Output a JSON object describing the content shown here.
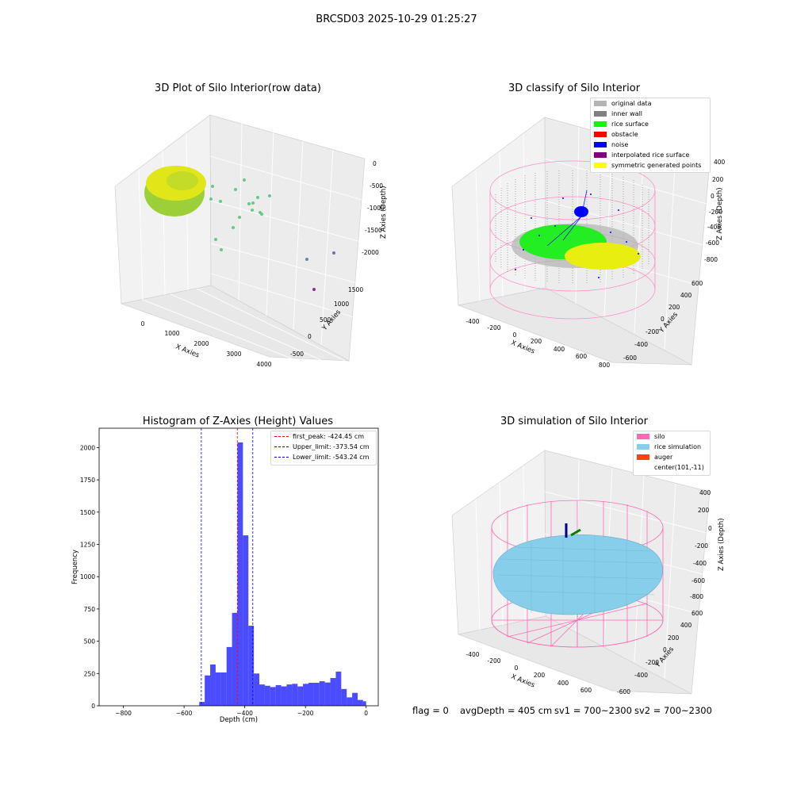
{
  "suptitle": "BRCSD03 2025-10-29 01:25:27",
  "panels": {
    "raw": {
      "title": "3D Plot of Silo Interior(row data)",
      "xlabel": "X Axies",
      "ylabel": "Y Axies",
      "zlabel": "Z Axies (Depth)",
      "xticks": [
        "0",
        "1000",
        "2000",
        "3000",
        "4000"
      ],
      "yticks": [
        "-500",
        "0",
        "500",
        "1000",
        "1500"
      ],
      "zticks": [
        "0",
        "-500",
        "-1000",
        "-1500",
        "-2000"
      ]
    },
    "classify": {
      "title": "3D classify of Silo Interior",
      "xlabel": "X Axies",
      "ylabel": "Y Axies",
      "zlabel": "Z Axies (Depth)",
      "xticks": [
        "-400",
        "-200",
        "0",
        "200",
        "400",
        "600",
        "800"
      ],
      "yticks": [
        "-600",
        "-400",
        "-200",
        "0",
        "200",
        "400",
        "600"
      ],
      "zticks": [
        "400",
        "200",
        "0",
        "-200",
        "-400",
        "-600",
        "-800"
      ],
      "legend": [
        {
          "label": "original data",
          "color": "#b4b4b4"
        },
        {
          "label": "inner wall",
          "color": "#808080"
        },
        {
          "label": "rice surface",
          "color": "#00ff00"
        },
        {
          "label": "obstacle",
          "color": "#ff0000"
        },
        {
          "label": "noise",
          "color": "#0000ff"
        },
        {
          "label": "interpolated rice surface",
          "color": "#800080"
        },
        {
          "label": "symmetric generated points",
          "color": "#ffff00"
        }
      ]
    },
    "simulation": {
      "title": "3D simulation of Silo Interior",
      "xlabel": "X Axies",
      "ylabel": "Y Axies",
      "zlabel": "Z Axies (Depth)",
      "xticks": [
        "-400",
        "-200",
        "0",
        "200",
        "400",
        "600"
      ],
      "yticks": [
        "-600",
        "-400",
        "-200",
        "0",
        "200",
        "400",
        "600"
      ],
      "zticks": [
        "400",
        "200",
        "0",
        "-200",
        "-400",
        "-600",
        "-800"
      ],
      "legend": [
        {
          "label": "silo",
          "color": "#ff69b4"
        },
        {
          "label": "rice simulation",
          "color": "#87ceeb"
        },
        {
          "label": "auger",
          "color": "#ff4500"
        },
        {
          "label": "center(101,-11)",
          "color": "none"
        }
      ]
    }
  },
  "footer": {
    "flag": "flag = 0",
    "avg_depth": "avgDepth = 405 cm",
    "sv1": "sv1 = 700~2300",
    "sv2": "sv2 = 700~2300"
  },
  "chart_data": [
    {
      "type": "histogram",
      "title": "Histogram of Z-Axies (Height) Values",
      "xlabel": "Depth (cm)",
      "ylabel": "Frequency",
      "xlim": [
        -880,
        40
      ],
      "ylim": [
        0,
        2150
      ],
      "xticks": [
        -800,
        -600,
        -400,
        -200,
        0
      ],
      "yticks": [
        0,
        250,
        500,
        750,
        1000,
        1250,
        1500,
        1750,
        2000
      ],
      "bar_color": "#0000ff",
      "bins": [
        {
          "x0": -550,
          "x1": -532,
          "count": 30
        },
        {
          "x0": -532,
          "x1": -514,
          "count": 235
        },
        {
          "x0": -514,
          "x1": -496,
          "count": 320
        },
        {
          "x0": -496,
          "x1": -478,
          "count": 258
        },
        {
          "x0": -478,
          "x1": -460,
          "count": 258
        },
        {
          "x0": -460,
          "x1": -442,
          "count": 455
        },
        {
          "x0": -442,
          "x1": -424,
          "count": 720
        },
        {
          "x0": -424,
          "x1": -406,
          "count": 2040
        },
        {
          "x0": -406,
          "x1": -388,
          "count": 1320
        },
        {
          "x0": -388,
          "x1": -370,
          "count": 620
        },
        {
          "x0": -370,
          "x1": -352,
          "count": 250
        },
        {
          "x0": -352,
          "x1": -334,
          "count": 165
        },
        {
          "x0": -334,
          "x1": -316,
          "count": 155
        },
        {
          "x0": -316,
          "x1": -298,
          "count": 145
        },
        {
          "x0": -298,
          "x1": -280,
          "count": 160
        },
        {
          "x0": -280,
          "x1": -262,
          "count": 150
        },
        {
          "x0": -262,
          "x1": -244,
          "count": 165
        },
        {
          "x0": -244,
          "x1": -226,
          "count": 170
        },
        {
          "x0": -226,
          "x1": -208,
          "count": 150
        },
        {
          "x0": -208,
          "x1": -190,
          "count": 170
        },
        {
          "x0": -190,
          "x1": -172,
          "count": 178
        },
        {
          "x0": -172,
          "x1": -154,
          "count": 178
        },
        {
          "x0": -154,
          "x1": -136,
          "count": 190
        },
        {
          "x0": -136,
          "x1": -118,
          "count": 180
        },
        {
          "x0": -118,
          "x1": -100,
          "count": 215
        },
        {
          "x0": -100,
          "x1": -82,
          "count": 265
        },
        {
          "x0": -82,
          "x1": -64,
          "count": 130
        },
        {
          "x0": -64,
          "x1": -46,
          "count": 65
        },
        {
          "x0": -46,
          "x1": -28,
          "count": 100
        },
        {
          "x0": -28,
          "x1": -10,
          "count": 45
        },
        {
          "x0": -10,
          "x1": 0,
          "count": 35
        }
      ],
      "vlines": [
        {
          "x": -424.45,
          "color": "#ff0000",
          "label": "first_peak: -424.45 cm"
        },
        {
          "x": -373.54,
          "color": "#0000ff",
          "label": "Upper_limit: -373.54 cm"
        },
        {
          "x": -543.24,
          "color": "#0000ff",
          "label": "Lower_limit: -543.24 cm"
        }
      ],
      "legend_position": "top-right"
    }
  ]
}
